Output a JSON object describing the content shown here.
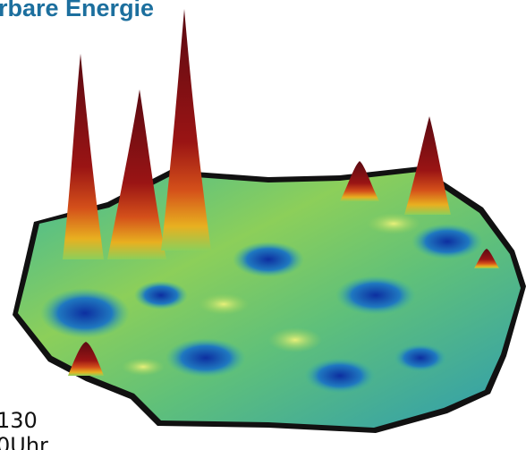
{
  "header": {
    "title": "rbare Energie"
  },
  "labels": [
    "130",
    "0Uhr"
  ]
}
